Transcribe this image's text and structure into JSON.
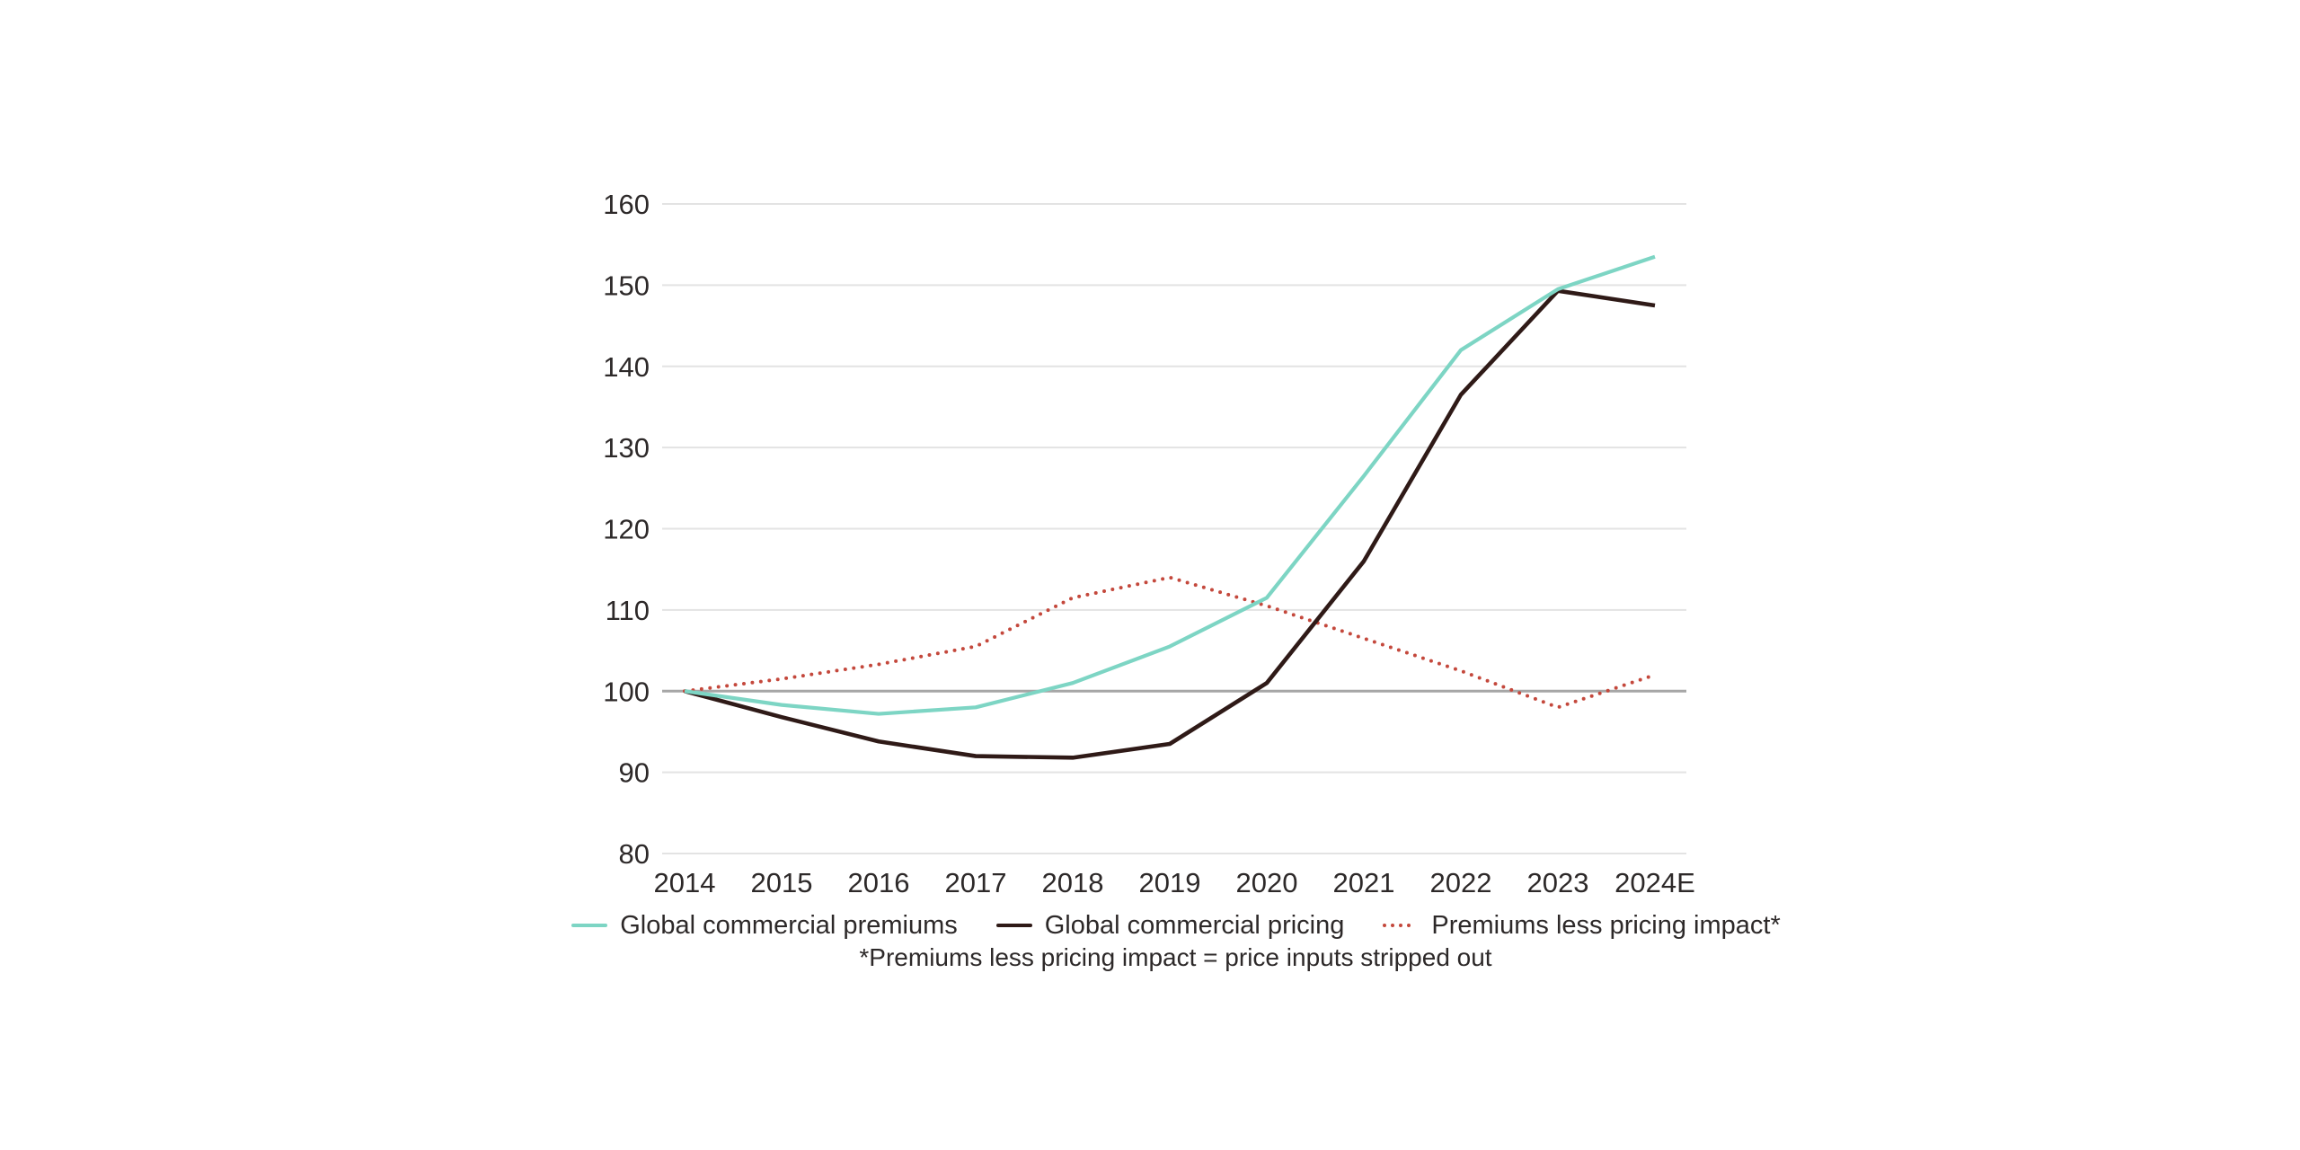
{
  "chart_data": {
    "type": "line",
    "title": "",
    "x": [
      "2014",
      "2015",
      "2016",
      "2017",
      "2018",
      "2019",
      "2020",
      "2021",
      "2022",
      "2023",
      "2024E"
    ],
    "series": [
      {
        "name": "Global commercial premiums",
        "color": "#7dd5c4",
        "style": "solid",
        "values": [
          100,
          98.3,
          97.2,
          98,
          101,
          105.5,
          111.5,
          126.5,
          142,
          149.5,
          153.5
        ]
      },
      {
        "name": "Global commercial pricing",
        "color": "#2f1a17",
        "style": "solid",
        "values": [
          100,
          96.8,
          93.8,
          92,
          91.8,
          93.5,
          101,
          116,
          136.5,
          149.3,
          147.5
        ]
      },
      {
        "name": "Premiums less pricing impact*",
        "color": "#c4483c",
        "style": "dotted",
        "values": [
          100,
          101.5,
          103.3,
          105.5,
          111.5,
          114,
          110.5,
          106.5,
          102.5,
          98,
          102
        ]
      }
    ],
    "ylim": [
      80,
      160
    ],
    "ytick_step": 10,
    "baseline_value": 100,
    "grid": "horizontal",
    "legend_position": "bottom",
    "footnote": "*Premiums less pricing impact = price inputs stripped out"
  },
  "colors": {
    "background": "#ffffff",
    "gridline": "#e3e3e3",
    "baseline_gridline": "#a6a6a6",
    "axis_text": "#2d2929"
  }
}
